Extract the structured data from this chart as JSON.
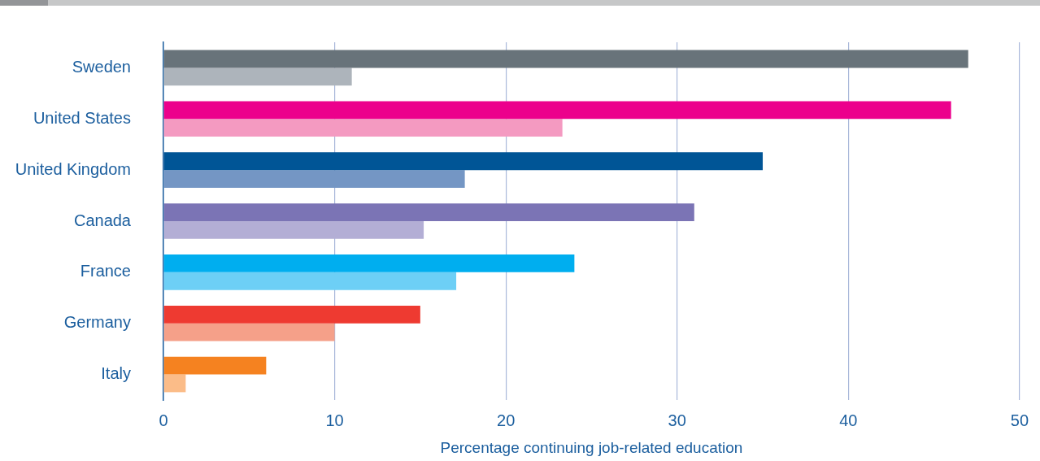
{
  "chart_data": {
    "type": "bar",
    "orientation": "horizontal",
    "xlabel": "Percentage continuing job-related education",
    "categories": [
      "Sweden",
      "United States",
      "United Kingdom",
      "Canada",
      "France",
      "Germany",
      "Italy"
    ],
    "series": [
      {
        "colors": [
          "#68737a",
          "#ec008c",
          "#005596",
          "#7b74b5",
          "#00aeef",
          "#ee3a31",
          "#f58220"
        ],
        "values": [
          47,
          46,
          35,
          31,
          24,
          15,
          6
        ]
      },
      {
        "colors": [
          "#adb4bb",
          "#f49ac1",
          "#7496c4",
          "#b3aed5",
          "#6dcff6",
          "#f5a089",
          "#fbbc88"
        ],
        "values": [
          11,
          23.3,
          17.6,
          15.2,
          17.1,
          10,
          1.3
        ]
      }
    ],
    "xlim": [
      0,
      50
    ],
    "xticks": [
      0,
      10,
      20,
      30,
      40,
      50
    ],
    "grid": "x",
    "legend": false
  }
}
